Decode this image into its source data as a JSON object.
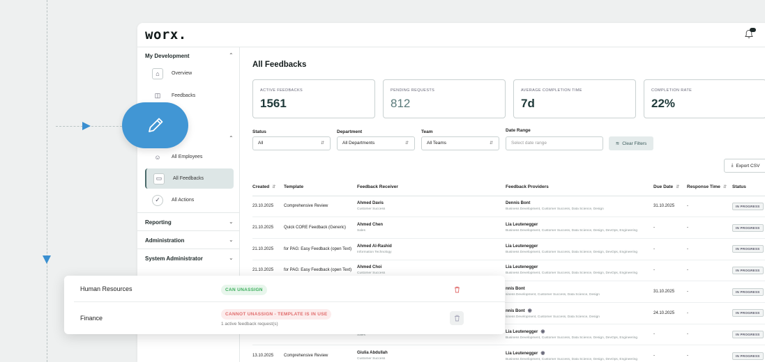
{
  "app": {
    "logo": "worx."
  },
  "sidebar": {
    "sections": [
      {
        "title": "My Development",
        "items": [
          {
            "label": "Overview",
            "icon": "home-icon"
          },
          {
            "label": "Feedbacks",
            "icon": "feedback-icon"
          }
        ]
      },
      {
        "title": "",
        "items": [
          {
            "label": "All Employees",
            "icon": "user-icon"
          },
          {
            "label": "All Feedbacks",
            "icon": "monitor-icon",
            "active": true
          },
          {
            "label": "All Actions",
            "icon": "check-circle-icon"
          }
        ]
      }
    ],
    "collapsed": [
      "Reporting",
      "Administration",
      "System Administrator"
    ]
  },
  "main": {
    "title": "All Feedbacks",
    "stats": [
      {
        "label": "ACTIVE FEEDBACKS",
        "value": "1561"
      },
      {
        "label": "PENDING REQUESTS",
        "value": "812"
      },
      {
        "label": "AVERAGE COMPLETION TIME",
        "value": "7d"
      },
      {
        "label": "COMPLETION RATE",
        "value": "22%"
      }
    ],
    "filters": {
      "status": {
        "label": "Status",
        "value": "All"
      },
      "department": {
        "label": "Department",
        "value": "All Departments"
      },
      "team": {
        "label": "Team",
        "value": "All Teams"
      },
      "date": {
        "label": "Date Range",
        "placeholder": "Select date range"
      },
      "clear": "Clear Filters"
    },
    "export": "Export CSV",
    "table": {
      "headers": [
        "Created",
        "Template",
        "Feedback Receiver",
        "Feedback Providers",
        "Due Date",
        "Response Time",
        "Status"
      ],
      "rows": [
        {
          "created": "23.10.2025",
          "template": "Comprehensive Review",
          "receiver": "Ahmed Davis",
          "receiver_dept": "Customer Success",
          "provider": "Dennis Bont",
          "provider_depts": "Business Development, Customer Success, Data Science, Design",
          "due": "31.10.2025",
          "response": "-",
          "status": "IN PROGRESS"
        },
        {
          "created": "21.10.2025",
          "template": "Quick CORE Feedback (Generic)",
          "receiver": "Ahmed Chen",
          "receiver_dept": "Sales",
          "provider": "Lia Leutenegger",
          "provider_depts": "Business Development, Customer Success, Data Science, Design, DevOps, Engineering",
          "due": "-",
          "response": "-",
          "status": "IN PROGRESS"
        },
        {
          "created": "21.10.2025",
          "template": "for PAG: Easy Feedback (open Text)",
          "receiver": "Ahmed Al-Rashid",
          "receiver_dept": "Information Technology",
          "provider": "Lia Leutenegger",
          "provider_depts": "Business Development, Customer Success, Data Science, Design, DevOps, Engineering",
          "due": "-",
          "response": "-",
          "status": "IN PROGRESS"
        },
        {
          "created": "21.10.2025",
          "template": "for PAG: Easy Feedback (open Text)",
          "receiver": "Ahmed Choi",
          "receiver_dept": "Customer Success",
          "provider": "Lia Leutenegger",
          "provider_depts": "Business Development, Customer Success, Data Science, Design, DevOps, Engineering",
          "due": "-",
          "response": "-",
          "status": "IN PROGRESS"
        },
        {
          "created": "",
          "template": "",
          "receiver": "",
          "receiver_dept": "",
          "provider": "nnis Bont",
          "provider_depts": "siness Development, Customer Success, Data Science, Design",
          "due": "31.10.2025",
          "response": "-",
          "status": "IN PROGRESS"
        },
        {
          "created": "",
          "template": "",
          "receiver": "",
          "receiver_dept": "",
          "provider": "nnis Bont",
          "provider_depts": "siness Development, Customer Success, Data Science, Design",
          "due": "24.10.2025",
          "response": "-",
          "status": "IN PROGRESS"
        },
        {
          "created": "",
          "template": "",
          "receiver": "",
          "receiver_dept": "Sales",
          "provider": "Lia Leutenegger",
          "provider_depts": "Business Development, Customer Success, Data Science, Design, DevOps, Engineering",
          "due": "-",
          "response": "-",
          "status": "IN PROGRESS"
        },
        {
          "created": "13.10.2025",
          "template": "Comprehensive Review",
          "receiver": "Giulia Abdullah",
          "receiver_dept": "Customer Success",
          "provider": "Lia Leutenegger",
          "provider_depts": "Business Development, Customer Success, Data Science, Design, DevOps, Engineering",
          "due": "-",
          "response": "-",
          "status": "IN PROGRESS"
        }
      ]
    }
  },
  "popup": {
    "rows": [
      {
        "dept": "Human Resources",
        "tag": "CAN UNASSIGN",
        "sub": ""
      },
      {
        "dept": "Finance",
        "tag": "CANNOT UNASSIGN - TEMPLATE IS IN USE",
        "sub": "1 active feedback request(s)"
      }
    ]
  },
  "colors": {
    "accent": "#4196d4",
    "ok": "#3cae5c",
    "danger": "#e06b6b"
  }
}
